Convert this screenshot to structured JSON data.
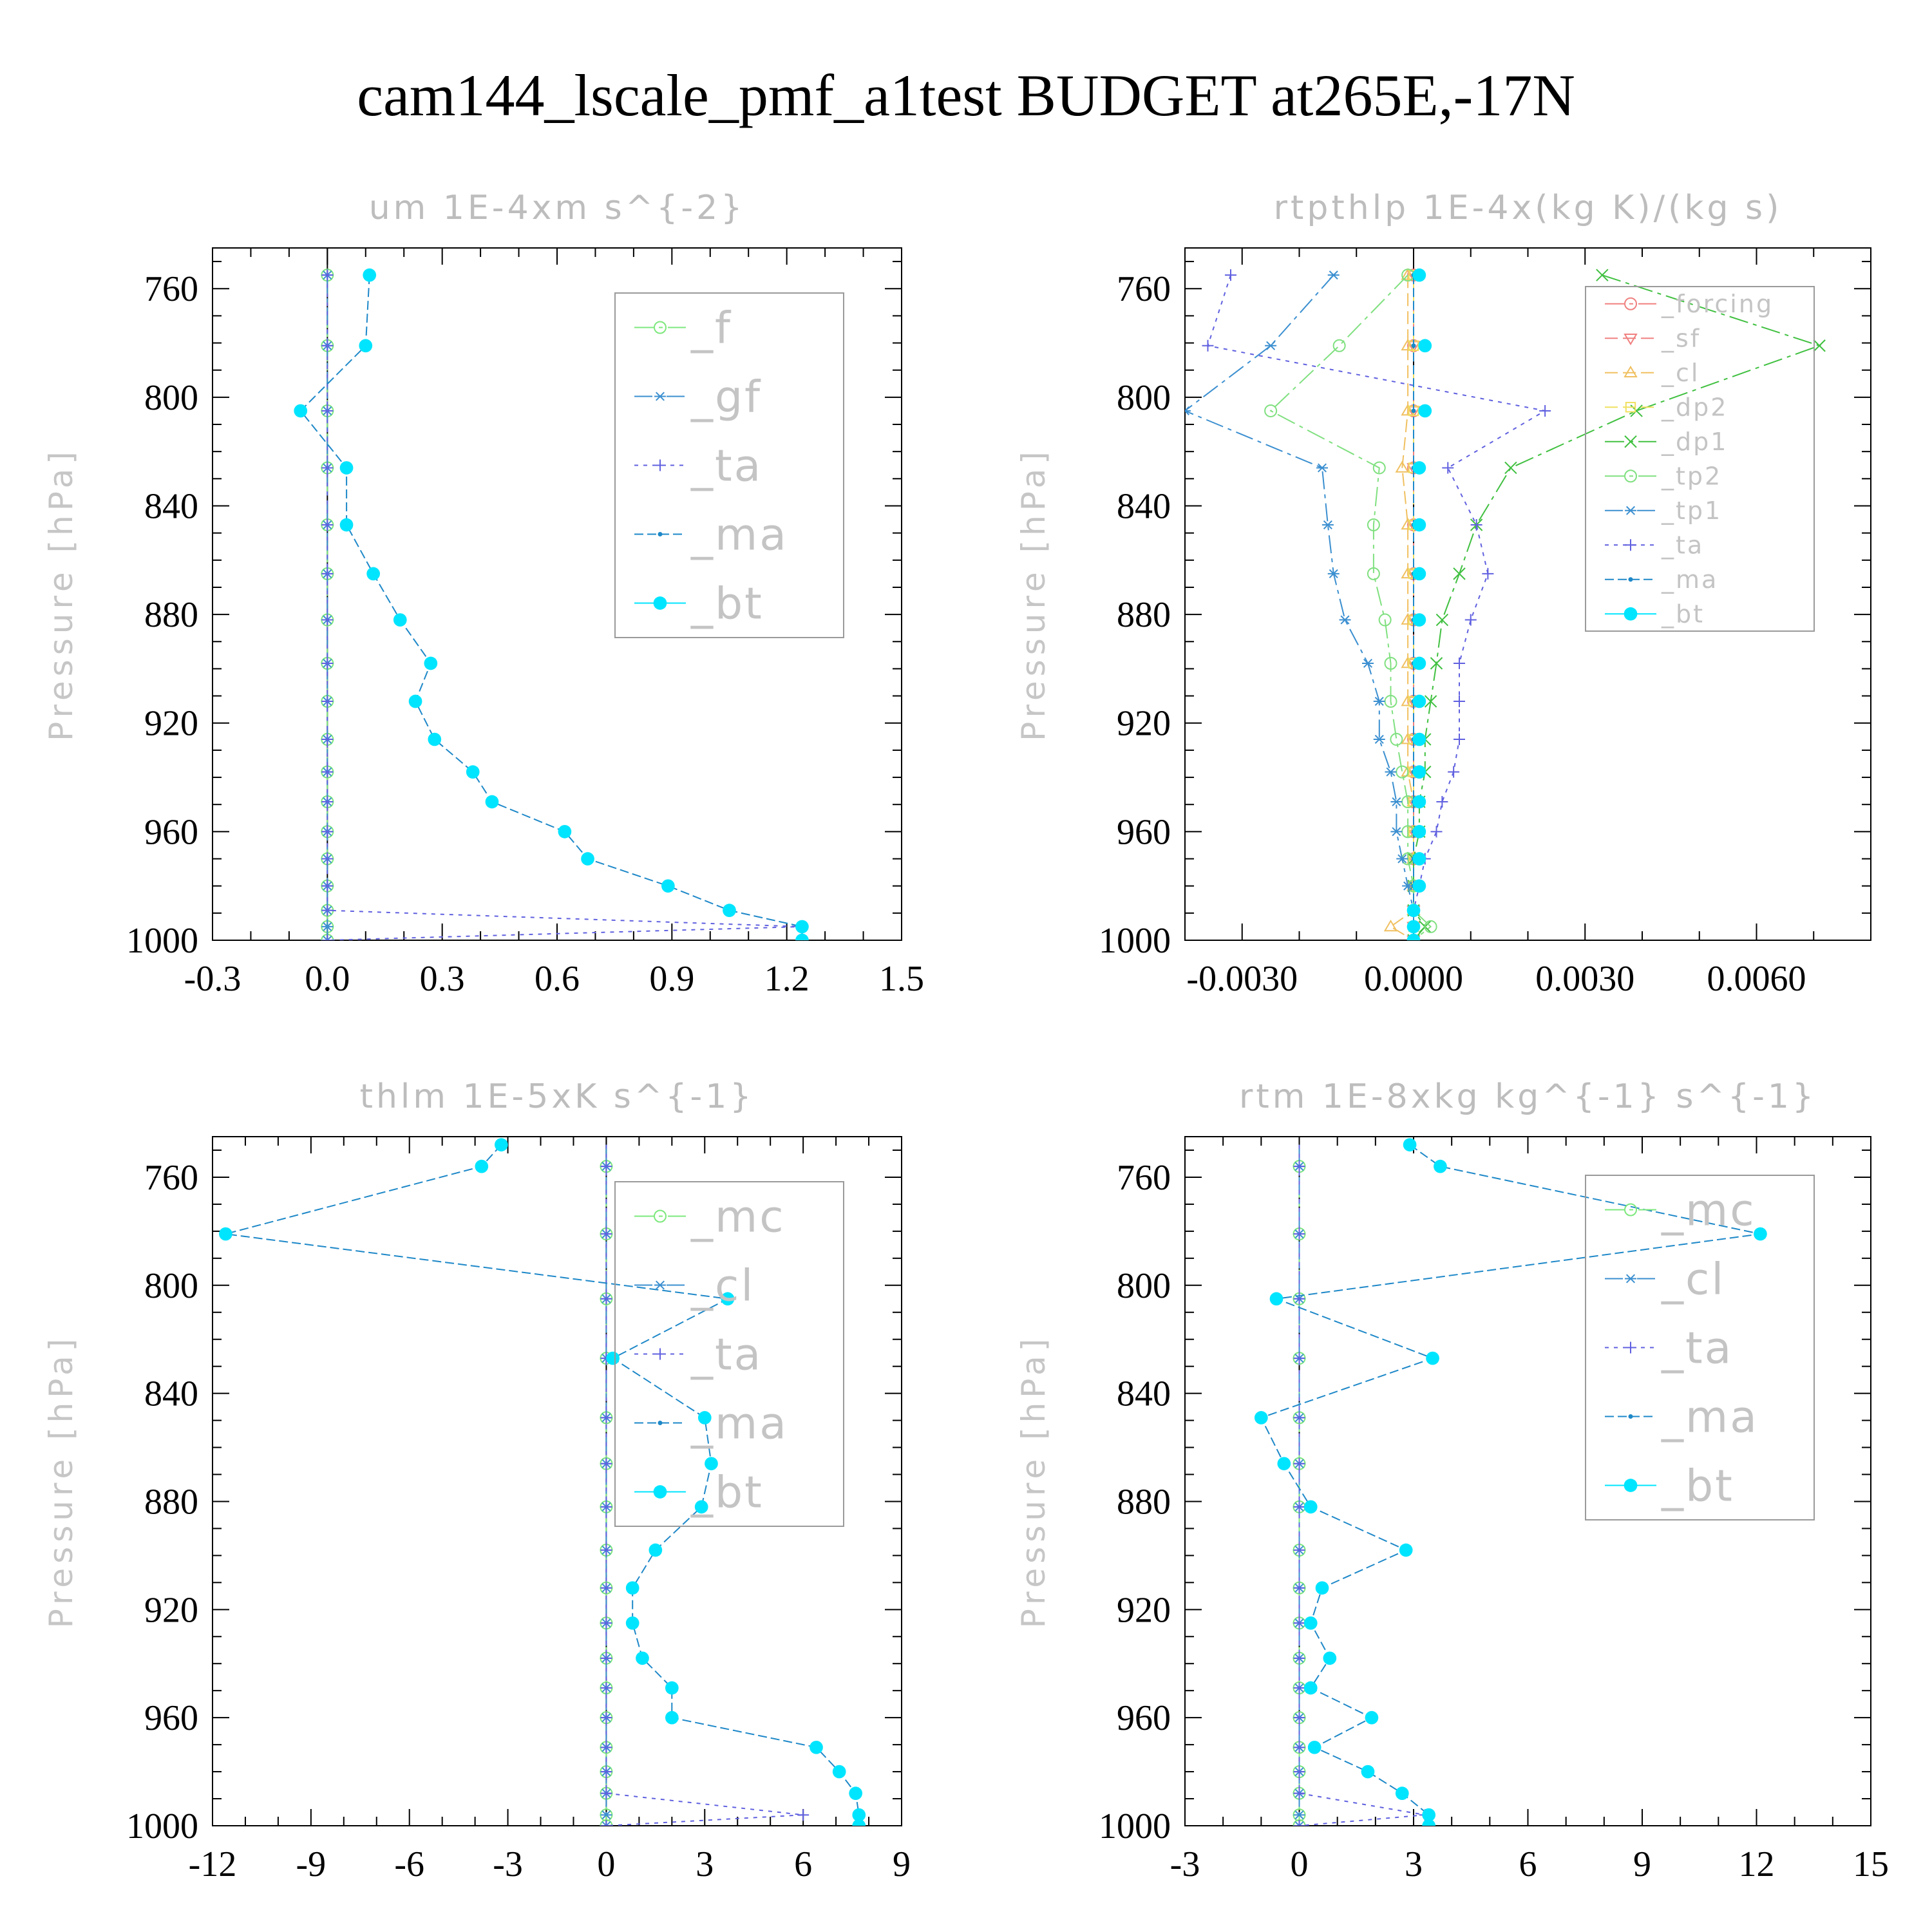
{
  "title": "cam144_lscale_pmf_a1test  BUDGET at265E,-17N",
  "colors": {
    "f": "#7de87d",
    "gf": "#3b8fd0",
    "ta": "#6060e0",
    "ma": "#1e88c8",
    "bt": "#00e5ff",
    "forcing": "#f08080",
    "sf": "#f08080",
    "cl": "#f0c060",
    "dp2": "#f0e060",
    "dp1": "#40c040",
    "tp2": "#80e080",
    "tp1": "#3b8fd0",
    "mc": "#7de87d",
    "zero": "#000000"
  },
  "chart_data": [
    {
      "type": "line",
      "title": "um   1E-4xm s^{-2}",
      "ylabel": "Pressure [hPa]",
      "xlim": [
        -0.3,
        1.5
      ],
      "ylim": [
        1000,
        745
      ],
      "xticks": [
        -0.3,
        0.0,
        0.3,
        0.6,
        0.9,
        1.2,
        1.5
      ],
      "xtick_labels": [
        "-0.3",
        "0.0",
        "0.3",
        "0.6",
        "0.9",
        "1.2",
        "1.5"
      ],
      "yticks": [
        760,
        800,
        840,
        880,
        920,
        960,
        1000
      ],
      "ytick_labels": [
        "760",
        "800",
        "840",
        "880",
        "920",
        "960",
        "1000"
      ],
      "levels": [
        755,
        781,
        805,
        826,
        847,
        865,
        882,
        898,
        912,
        926,
        938,
        949,
        960,
        970,
        980,
        989,
        995,
        1000
      ],
      "legend": {
        "font_size": 68,
        "placement": "top-right"
      },
      "series": [
        {
          "name": "_f",
          "color": "f",
          "marker": "circle",
          "values": [
            0,
            0,
            0,
            0,
            0,
            0,
            0,
            0,
            0,
            0,
            0,
            0,
            0,
            0,
            0,
            0,
            0,
            0
          ]
        },
        {
          "name": "_gf",
          "color": "gf",
          "marker": "star",
          "values": [
            0,
            0,
            0,
            0,
            0,
            0,
            0,
            0,
            0,
            0,
            0,
            0,
            0,
            0,
            0,
            0,
            0,
            0
          ]
        },
        {
          "name": "_ta",
          "color": "ta",
          "marker": "plus",
          "values": [
            0,
            0,
            0,
            0,
            0,
            0,
            0,
            0,
            0,
            0,
            0,
            0,
            0,
            0,
            0,
            0,
            1.24,
            0
          ]
        },
        {
          "name": "_ma",
          "color": "ma",
          "marker": "dot",
          "values": [
            0.11,
            0.1,
            -0.07,
            0.05,
            0.05,
            0.12,
            0.19,
            0.27,
            0.23,
            0.28,
            0.38,
            0.43,
            0.62,
            0.68,
            0.89,
            1.05,
            1.24,
            1.24
          ]
        },
        {
          "name": "_bt",
          "color": "bt",
          "marker": "filled",
          "values": [
            0.11,
            0.1,
            -0.07,
            0.05,
            0.05,
            0.12,
            0.19,
            0.27,
            0.23,
            0.28,
            0.38,
            0.43,
            0.62,
            0.68,
            0.89,
            1.05,
            1.24,
            1.24
          ]
        }
      ]
    },
    {
      "type": "line",
      "title": "rtpthlp   1E-4x(kg K)/(kg s)",
      "ylabel": "Pressure [hPa]",
      "xlim": [
        -0.004,
        0.008
      ],
      "ylim": [
        1000,
        745
      ],
      "xticks": [
        -0.003,
        0.0,
        0.003,
        0.006
      ],
      "xtick_labels": [
        "-0.0030",
        "0.0000",
        "0.0030",
        "0.0060"
      ],
      "yticks": [
        760,
        800,
        840,
        880,
        920,
        960,
        1000
      ],
      "ytick_labels": [
        "760",
        "800",
        "840",
        "880",
        "920",
        "960",
        "1000"
      ],
      "levels": [
        755,
        781,
        805,
        826,
        847,
        865,
        882,
        898,
        912,
        926,
        938,
        949,
        960,
        970,
        980,
        989,
        995,
        1000
      ],
      "legend": {
        "font_size": 38,
        "placement": "top-right"
      },
      "series": [
        {
          "name": "_forcing",
          "color": "forcing",
          "marker": "circle",
          "values": [
            0,
            0,
            0,
            0,
            0,
            0,
            0,
            0,
            0,
            0,
            0,
            0,
            0,
            0,
            0,
            0,
            0,
            0
          ]
        },
        {
          "name": "_sf",
          "color": "sf",
          "marker": "triangle-down",
          "values": [
            0,
            0,
            0,
            0,
            0,
            0,
            0,
            0,
            0,
            0,
            0,
            0,
            0,
            0,
            0,
            0,
            0,
            0
          ]
        },
        {
          "name": "_cl",
          "color": "cl",
          "marker": "triangle-up",
          "values": [
            -0.0001,
            -0.0001,
            -0.0001,
            -0.0002,
            -0.0001,
            -0.0001,
            -0.0001,
            -0.0001,
            -0.0001,
            -0.0001,
            -0.0001,
            0,
            0,
            0,
            0,
            0,
            -0.0004,
            0
          ]
        },
        {
          "name": "_dp2",
          "color": "dp2",
          "marker": "square",
          "values": [
            0,
            0,
            0,
            0,
            0,
            0,
            0,
            0,
            0,
            0,
            0,
            0,
            0,
            0,
            0,
            0,
            0,
            0
          ]
        },
        {
          "name": "_dp1",
          "color": "dp1",
          "marker": "x",
          "values": [
            0.0033,
            0.0071,
            0.0039,
            0.0017,
            0.0011,
            0.0008,
            0.0005,
            0.0004,
            0.0003,
            0.0002,
            0.0002,
            0.0001,
            0.0001,
            0,
            0,
            0,
            0.0002,
            0
          ]
        },
        {
          "name": "_tp2",
          "color": "tp2",
          "marker": "circle",
          "values": [
            -0.0001,
            -0.0013,
            -0.0025,
            -0.0006,
            -0.0007,
            -0.0007,
            -0.0005,
            -0.0004,
            -0.0004,
            -0.0003,
            -0.0002,
            -0.0001,
            -0.0001,
            -0.0001,
            0,
            0,
            0.0003,
            0
          ]
        },
        {
          "name": "_tp1",
          "color": "tp1",
          "marker": "star",
          "values": [
            -0.0014,
            -0.0025,
            -0.004,
            -0.0016,
            -0.0015,
            -0.0014,
            -0.0012,
            -0.0008,
            -0.0006,
            -0.0006,
            -0.0004,
            -0.0003,
            -0.0003,
            -0.0002,
            -0.0001,
            0,
            0,
            0
          ]
        },
        {
          "name": "_ta",
          "color": "ta",
          "marker": "plus",
          "values": [
            -0.0032,
            -0.0036,
            0.0023,
            0.0006,
            0.0011,
            0.0013,
            0.001,
            0.0008,
            0.0008,
            0.0008,
            0.0007,
            0.0005,
            0.0004,
            0.0002,
            0.0001,
            0,
            0,
            0
          ]
        },
        {
          "name": "_ma",
          "color": "ma",
          "marker": "dot",
          "values": [
            0,
            0,
            0,
            0,
            0,
            0,
            0,
            0,
            0,
            0,
            0,
            0,
            0,
            0,
            0,
            0,
            0,
            0
          ]
        },
        {
          "name": "_bt",
          "color": "bt",
          "marker": "filled",
          "values": [
            0.0001,
            0.0002,
            0.0002,
            0.0001,
            0.0001,
            0.0001,
            0.0001,
            0.0001,
            0.0001,
            0.0001,
            0.0001,
            0.0001,
            0.0001,
            0.0001,
            0.0001,
            0,
            0,
            0
          ]
        }
      ]
    },
    {
      "type": "line",
      "title": "thlm   1E-5xK s^{-1}",
      "ylabel": "Pressure [hPa]",
      "xlim": [
        -12,
        9
      ],
      "ylim": [
        1000,
        745
      ],
      "xticks": [
        -12,
        -9,
        -6,
        -3,
        0,
        3,
        6,
        9
      ],
      "xtick_labels": [
        "-12",
        "-9",
        "-6",
        "-3",
        "0",
        "3",
        "6",
        "9"
      ],
      "yticks": [
        760,
        800,
        840,
        880,
        920,
        960,
        1000
      ],
      "ytick_labels": [
        "760",
        "800",
        "840",
        "880",
        "920",
        "960",
        "1000"
      ],
      "levels": [
        748,
        756,
        781,
        805,
        827,
        849,
        866,
        882,
        898,
        912,
        925,
        938,
        949,
        960,
        971,
        980,
        988,
        996,
        1000
      ],
      "legend": {
        "font_size": 68,
        "placement": "top-right"
      },
      "series": [
        {
          "name": "_mc",
          "color": "mc",
          "marker": "circle",
          "values": [
            0,
            0,
            0,
            0,
            0,
            0,
            0,
            0,
            0,
            0,
            0,
            0,
            0,
            0,
            0,
            0,
            0,
            0,
            0
          ]
        },
        {
          "name": "_cl",
          "color": "gf",
          "marker": "star",
          "values": [
            0,
            0,
            0,
            0,
            0,
            0,
            0,
            0,
            0,
            0,
            0,
            0,
            0,
            0,
            0,
            0,
            0,
            0,
            0
          ]
        },
        {
          "name": "_ta",
          "color": "ta",
          "marker": "plus",
          "values": [
            0,
            0,
            0,
            0,
            0,
            0,
            0,
            0,
            0,
            0,
            0,
            0,
            0,
            0,
            0,
            0,
            0,
            6.0,
            0
          ]
        },
        {
          "name": "_ma",
          "color": "ma",
          "marker": "dot",
          "values": [
            -3.2,
            -3.8,
            -11.6,
            3.7,
            0.2,
            3.0,
            3.2,
            2.9,
            1.5,
            0.8,
            0.8,
            1.1,
            2.0,
            2.0,
            6.4,
            7.1,
            7.6,
            7.7,
            7.7
          ]
        },
        {
          "name": "_bt",
          "color": "bt",
          "marker": "filled",
          "values": [
            -3.2,
            -3.8,
            -11.6,
            3.7,
            0.2,
            3.0,
            3.2,
            2.9,
            1.5,
            0.8,
            0.8,
            1.1,
            2.0,
            2.0,
            6.4,
            7.1,
            7.6,
            7.7,
            7.7
          ]
        }
      ]
    },
    {
      "type": "line",
      "title": "rtm   1E-8xkg kg^{-1} s^{-1}",
      "ylabel": "Pressure [hPa]",
      "xlim": [
        -3,
        15
      ],
      "ylim": [
        1000,
        745
      ],
      "xticks": [
        -3,
        0,
        3,
        6,
        9,
        12,
        15
      ],
      "xtick_labels": [
        "-3",
        "0",
        "3",
        "6",
        "9",
        "12",
        "15"
      ],
      "yticks": [
        760,
        800,
        840,
        880,
        920,
        960,
        1000
      ],
      "ytick_labels": [
        "760",
        "800",
        "840",
        "880",
        "920",
        "960",
        "1000"
      ],
      "levels": [
        748,
        756,
        781,
        805,
        827,
        849,
        866,
        882,
        898,
        912,
        925,
        938,
        949,
        960,
        971,
        980,
        988,
        996,
        1000
      ],
      "legend": {
        "font_size": 68,
        "placement": "top-right"
      },
      "series": [
        {
          "name": "_mc",
          "color": "mc",
          "marker": "circle",
          "values": [
            0,
            0,
            0,
            0,
            0,
            0,
            0,
            0,
            0,
            0,
            0,
            0,
            0,
            0,
            0,
            0,
            0,
            0,
            0
          ]
        },
        {
          "name": "_cl",
          "color": "gf",
          "marker": "star",
          "values": [
            0,
            0,
            0,
            0,
            0,
            0,
            0,
            0,
            0,
            0,
            0,
            0,
            0,
            0,
            0,
            0,
            0,
            0,
            0
          ]
        },
        {
          "name": "_ta",
          "color": "ta",
          "marker": "plus",
          "values": [
            0,
            0,
            0,
            0,
            0,
            0,
            0,
            0,
            0,
            0,
            0,
            0,
            0,
            0,
            0,
            0,
            0,
            3.3,
            0
          ]
        },
        {
          "name": "_ma",
          "color": "ma",
          "marker": "dot",
          "values": [
            2.9,
            3.7,
            12.1,
            -0.6,
            3.5,
            -1.0,
            -0.4,
            0.3,
            2.8,
            0.6,
            0.3,
            0.8,
            0.3,
            1.9,
            0.4,
            1.8,
            2.7,
            3.4,
            3.4
          ]
        },
        {
          "name": "_bt",
          "color": "bt",
          "marker": "filled",
          "values": [
            2.9,
            3.7,
            12.1,
            -0.6,
            3.5,
            -1.0,
            -0.4,
            0.3,
            2.8,
            0.6,
            0.3,
            0.8,
            0.3,
            1.9,
            0.4,
            1.8,
            2.7,
            3.4,
            3.4
          ]
        }
      ]
    }
  ]
}
